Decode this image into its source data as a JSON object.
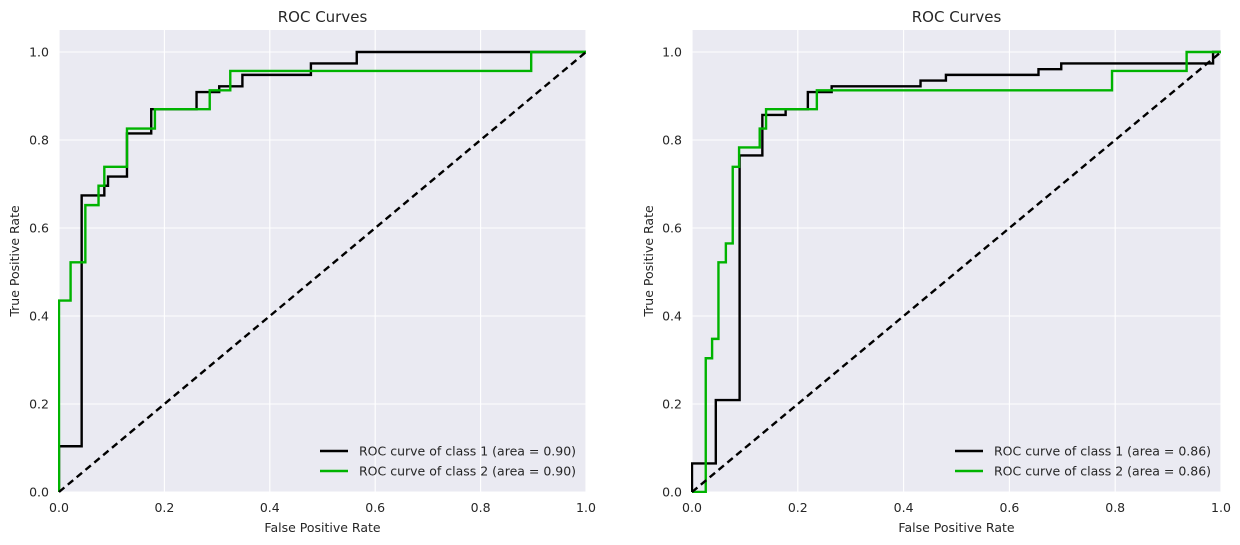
{
  "chart_data": [
    {
      "type": "line",
      "title": "ROC Curves",
      "xlabel": "False Positive Rate",
      "ylabel": "True Positive Rate",
      "xlim": [
        0.0,
        1.0
      ],
      "ylim": [
        0.0,
        1.05
      ],
      "xticks": [
        "0.0",
        "0.2",
        "0.4",
        "0.6",
        "0.8",
        "1.0"
      ],
      "yticks": [
        "0.0",
        "0.2",
        "0.4",
        "0.6",
        "0.8",
        "1.0"
      ],
      "grid": true,
      "legend_position": "lower-right",
      "series": [
        {
          "name": "ROC curve of class 1 (area = 0.90)",
          "color": "#000000",
          "points": [
            [
              0.0,
              0.0
            ],
            [
              0.0,
              0.104
            ],
            [
              0.043,
              0.104
            ],
            [
              0.043,
              0.674
            ],
            [
              0.086,
              0.674
            ],
            [
              0.086,
              0.696
            ],
            [
              0.093,
              0.696
            ],
            [
              0.093,
              0.717
            ],
            [
              0.129,
              0.717
            ],
            [
              0.129,
              0.815
            ],
            [
              0.175,
              0.815
            ],
            [
              0.175,
              0.87
            ],
            [
              0.261,
              0.87
            ],
            [
              0.261,
              0.909
            ],
            [
              0.304,
              0.909
            ],
            [
              0.304,
              0.922
            ],
            [
              0.348,
              0.922
            ],
            [
              0.348,
              0.948
            ],
            [
              0.478,
              0.948
            ],
            [
              0.478,
              0.974
            ],
            [
              0.565,
              0.974
            ],
            [
              0.565,
              1.0
            ],
            [
              1.0,
              1.0
            ]
          ]
        },
        {
          "name": "ROC curve of class 2 (area = 0.90)",
          "color": "#00b300",
          "points": [
            [
              0.0,
              0.0
            ],
            [
              0.0,
              0.435
            ],
            [
              0.022,
              0.435
            ],
            [
              0.022,
              0.522
            ],
            [
              0.05,
              0.522
            ],
            [
              0.05,
              0.652
            ],
            [
              0.075,
              0.652
            ],
            [
              0.075,
              0.696
            ],
            [
              0.086,
              0.696
            ],
            [
              0.086,
              0.739
            ],
            [
              0.129,
              0.739
            ],
            [
              0.129,
              0.826
            ],
            [
              0.182,
              0.826
            ],
            [
              0.182,
              0.87
            ],
            [
              0.286,
              0.87
            ],
            [
              0.286,
              0.913
            ],
            [
              0.325,
              0.913
            ],
            [
              0.325,
              0.957
            ],
            [
              0.896,
              0.957
            ],
            [
              0.896,
              1.0
            ],
            [
              1.0,
              1.0
            ]
          ]
        },
        {
          "name": "",
          "color": "#000000",
          "dashed": true,
          "points": [
            [
              0.0,
              0.0
            ],
            [
              1.0,
              1.0
            ]
          ]
        }
      ]
    },
    {
      "type": "line",
      "title": "ROC Curves",
      "xlabel": "False Positive Rate",
      "ylabel": "True Positive Rate",
      "xlim": [
        0.0,
        1.0
      ],
      "ylim": [
        0.0,
        1.05
      ],
      "xticks": [
        "0.0",
        "0.2",
        "0.4",
        "0.6",
        "0.8",
        "1.0"
      ],
      "yticks": [
        "0.0",
        "0.2",
        "0.4",
        "0.6",
        "0.8",
        "1.0"
      ],
      "grid": true,
      "legend_position": "lower-right",
      "series": [
        {
          "name": "ROC curve of class 1 (area = 0.86)",
          "color": "#000000",
          "points": [
            [
              0.0,
              0.0
            ],
            [
              0.0,
              0.065
            ],
            [
              0.045,
              0.065
            ],
            [
              0.045,
              0.209
            ],
            [
              0.09,
              0.209
            ],
            [
              0.09,
              0.765
            ],
            [
              0.133,
              0.765
            ],
            [
              0.133,
              0.857
            ],
            [
              0.177,
              0.857
            ],
            [
              0.177,
              0.87
            ],
            [
              0.219,
              0.87
            ],
            [
              0.219,
              0.909
            ],
            [
              0.264,
              0.909
            ],
            [
              0.264,
              0.922
            ],
            [
              0.432,
              0.922
            ],
            [
              0.432,
              0.935
            ],
            [
              0.48,
              0.935
            ],
            [
              0.48,
              0.948
            ],
            [
              0.655,
              0.948
            ],
            [
              0.655,
              0.961
            ],
            [
              0.698,
              0.961
            ],
            [
              0.698,
              0.974
            ],
            [
              0.985,
              0.974
            ],
            [
              0.985,
              1.0
            ],
            [
              1.0,
              1.0
            ]
          ]
        },
        {
          "name": "ROC curve of class 2 (area = 0.86)",
          "color": "#00b300",
          "points": [
            [
              0.0,
              0.0
            ],
            [
              0.026,
              0.0
            ],
            [
              0.026,
              0.304
            ],
            [
              0.038,
              0.304
            ],
            [
              0.038,
              0.348
            ],
            [
              0.05,
              0.348
            ],
            [
              0.05,
              0.522
            ],
            [
              0.064,
              0.522
            ],
            [
              0.064,
              0.565
            ],
            [
              0.077,
              0.565
            ],
            [
              0.077,
              0.739
            ],
            [
              0.089,
              0.739
            ],
            [
              0.089,
              0.783
            ],
            [
              0.128,
              0.783
            ],
            [
              0.128,
              0.826
            ],
            [
              0.14,
              0.826
            ],
            [
              0.14,
              0.87
            ],
            [
              0.236,
              0.87
            ],
            [
              0.236,
              0.913
            ],
            [
              0.794,
              0.913
            ],
            [
              0.794,
              0.957
            ],
            [
              0.935,
              0.957
            ],
            [
              0.935,
              1.0
            ],
            [
              1.0,
              1.0
            ]
          ]
        },
        {
          "name": "",
          "color": "#000000",
          "dashed": true,
          "points": [
            [
              0.0,
              0.0
            ],
            [
              1.0,
              1.0
            ]
          ]
        }
      ]
    }
  ]
}
